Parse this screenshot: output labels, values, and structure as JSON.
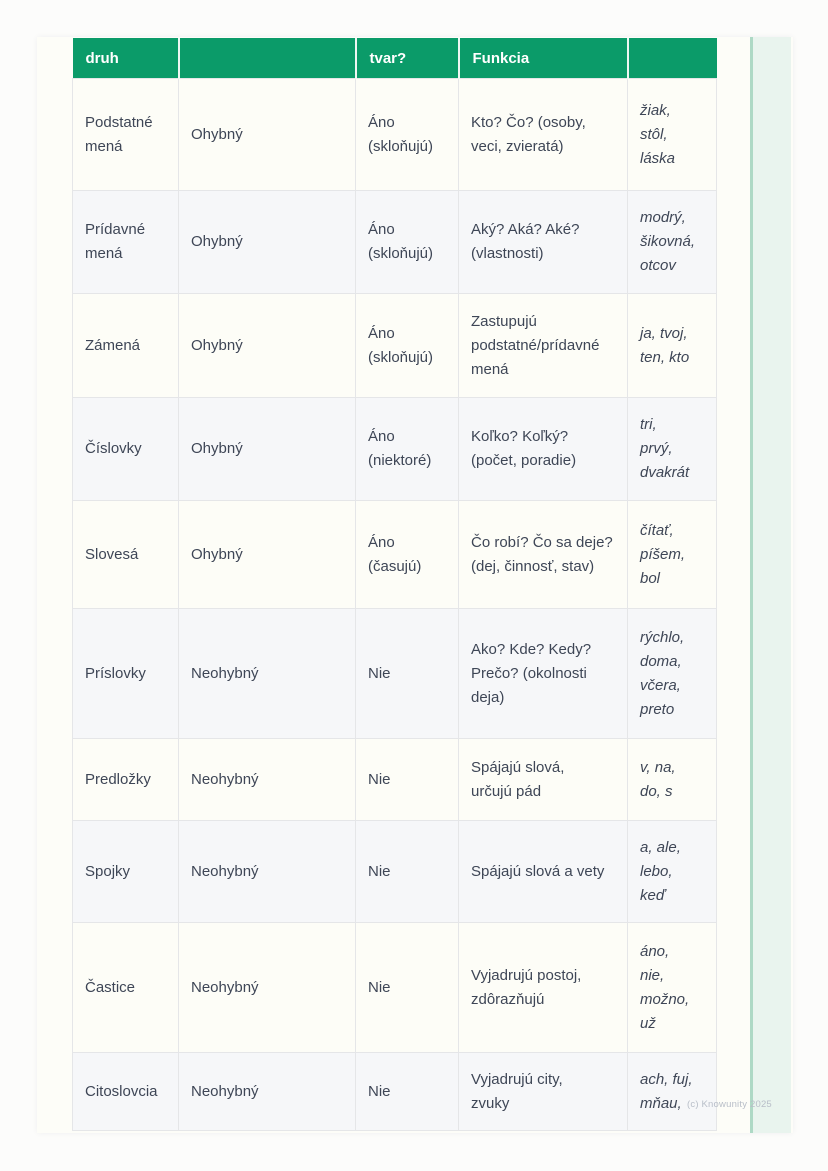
{
  "colors": {
    "header_bg": "#0b9b69",
    "header_text": "#ffffff",
    "page_bg": "#fdfdf8",
    "row_bg": "#fdfdf7",
    "row_alt_bg": "#f6f7f9",
    "border": "#e5e6e8",
    "text": "#3e4656",
    "stripe_bg": "#e9f4ee",
    "stripe_edge": "#aed9c5",
    "watermark": "#b8bec8"
  },
  "watermark": "(c) Knowunity 2025",
  "table": {
    "col_keys": [
      "druh",
      "ohybnost",
      "tvar",
      "funkcia",
      "priklady"
    ],
    "headers": [
      "druh",
      "",
      "tvar?",
      "Funkcia",
      ""
    ],
    "rows": [
      [
        "Podstatné\nmená",
        "Ohybný",
        "Áno\n(skloňujú)",
        "Kto? Čo? (osoby,\nveci, zvieratá)",
        "žiak,\nstôl,\nláska"
      ],
      [
        "Prídavné\nmená",
        "Ohybný",
        "Áno\n(skloňujú)",
        "Aký? Aká? Aké?\n(vlastnosti)",
        "modrý,\nšikovná,\notcov"
      ],
      [
        "Zámená",
        "Ohybný",
        "Áno\n(skloňujú)",
        "Zastupujú\npodstatné/prídavné\nmená",
        "ja, tvoj,\nten, kto"
      ],
      [
        "Číslovky",
        "Ohybný",
        "Áno\n(niektoré)",
        "Koľko? Koľký?\n(počet, poradie)",
        "tri,\nprvý,\ndvakrát"
      ],
      [
        "Slovesá",
        "Ohybný",
        "Áno\n(časujú)",
        "Čo robí? Čo sa deje?\n(dej, činnosť, stav)",
        "čítať,\npíšem,\nbol"
      ],
      [
        "Príslovky",
        "Neohybný",
        "Nie",
        "Ako? Kde? Kedy?\nPrečo? (okolnosti\ndeja)",
        "rýchlo,\ndoma,\nvčera,\npreto"
      ],
      [
        "Predložky",
        "Neohybný",
        "Nie",
        "Spájajú slová,\nurčujú pád",
        "v, na,\ndo, s"
      ],
      [
        "Spojky",
        "Neohybný",
        "Nie",
        "Spájajú slová a vety",
        "a, ale,\nlebo,\nkeď"
      ],
      [
        "Častice",
        "Neohybný",
        "Nie",
        "Vyjadrujú postoj,\nzdôrazňujú",
        "áno,\nnie,\nmožno,\nuž"
      ],
      [
        "Citoslovcia",
        "Neohybný",
        "Nie",
        "Vyjadrujú city,\nzvuky",
        "ach, fuj,\nmňau,"
      ]
    ]
  }
}
